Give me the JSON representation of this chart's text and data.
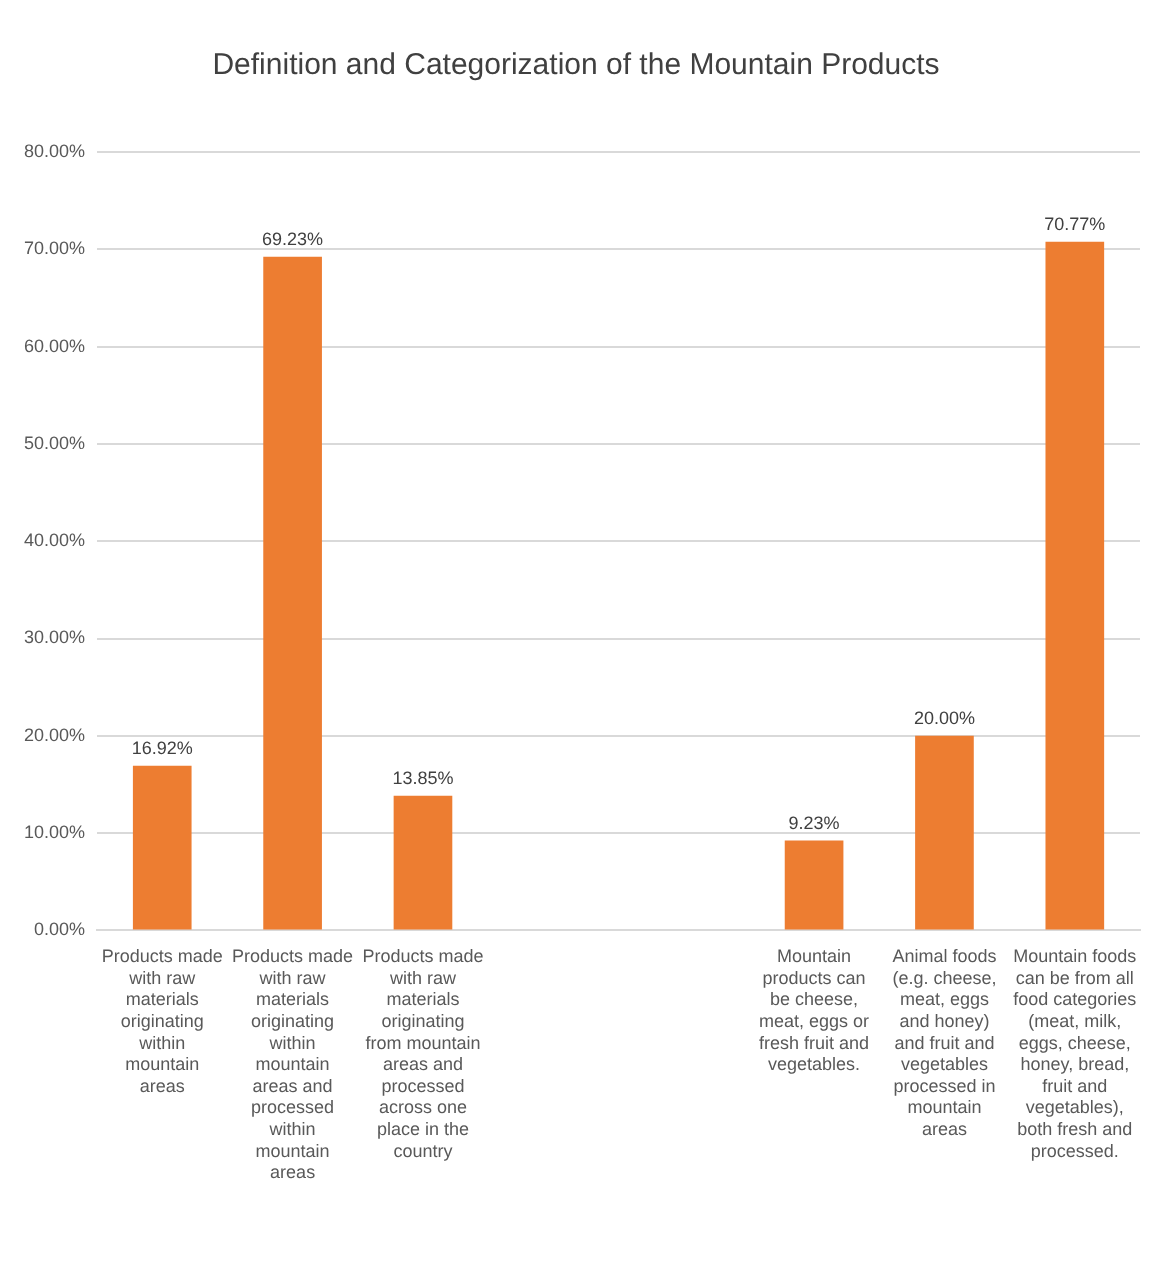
{
  "chart_data": {
    "type": "bar",
    "title": "Definition and Categorization of the Mountain Products",
    "categories": [
      "Products made with raw materials originating within mountain areas",
      "Products made with raw materials originating within mountain areas and processed within mountain areas",
      "Products made with raw materials originating from mountain areas and processed across one place in the country",
      null,
      null,
      "Mountain products can be cheese, meat, eggs or fresh fruit and vegetables.",
      "Animal foods (e.g. cheese, meat, eggs and honey) and fruit and vegetables processed in mountain areas",
      "Mountain foods can be from all food categories (meat, milk, eggs, cheese, honey, bread, fruit and vegetables), both fresh and processed."
    ],
    "values": [
      16.92,
      69.23,
      13.85,
      null,
      null,
      9.23,
      20.0,
      70.77
    ],
    "value_labels": [
      "16.92%",
      "69.23%",
      "13.85%",
      null,
      null,
      "9.23%",
      "20.00%",
      "70.77%"
    ],
    "color": "#ed7d31",
    "ylim": [
      0,
      80
    ],
    "yticks": [
      {
        "value": 0,
        "label": "0.00%"
      },
      {
        "value": 10,
        "label": "10.00%"
      },
      {
        "value": 20,
        "label": "20.00%"
      },
      {
        "value": 30,
        "label": "30.00%"
      },
      {
        "value": 40,
        "label": "40.00%"
      },
      {
        "value": 50,
        "label": "50.00%"
      },
      {
        "value": 60,
        "label": "60.00%"
      },
      {
        "value": 70,
        "label": "70.00%"
      },
      {
        "value": 80,
        "label": "80.00%"
      }
    ],
    "grid": "y",
    "legend": false
  }
}
